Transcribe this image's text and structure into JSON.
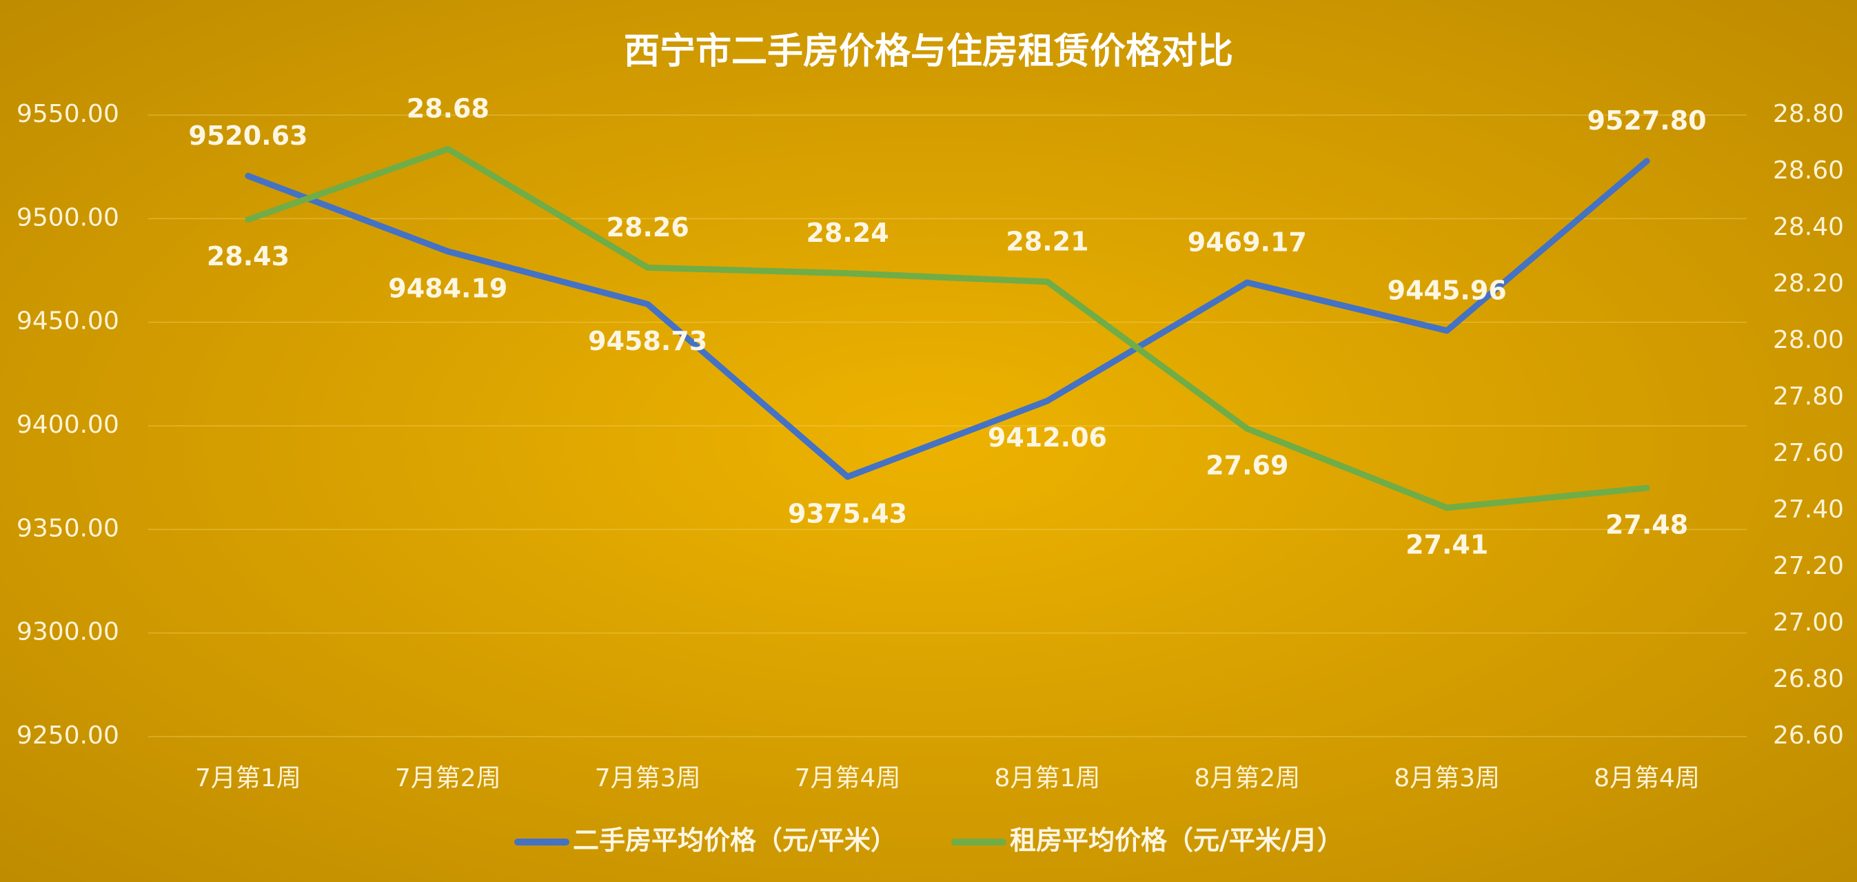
{
  "chart_data": {
    "type": "line",
    "title": "西宁市二手房价格与住房租赁价格对比",
    "categories": [
      "7月第1周",
      "7月第2周",
      "7月第3周",
      "7月第4周",
      "8月第1周",
      "8月第2周",
      "8月第3周",
      "8月第4周"
    ],
    "series": [
      {
        "name": "二手房平均价格（元/平米）",
        "color": "#4472c4",
        "values": [
          9520.63,
          9484.19,
          9458.73,
          9375.43,
          9412.06,
          9469.17,
          9445.96,
          9527.8
        ],
        "value_labels": [
          "9520.63",
          "9484.19",
          "9458.73",
          "9375.43",
          "9412.06",
          "9469.17",
          "9445.96",
          "9527.80"
        ]
      },
      {
        "name": "租房平均价格（元/平米/月）",
        "color": "#70ad47",
        "axis": "y2",
        "values": [
          28.43,
          28.68,
          28.26,
          28.24,
          28.21,
          27.69,
          27.41,
          27.48
        ]
      }
    ],
    "ylim": [
      9250,
      9550
    ],
    "yticks": [
      {
        "value": 9250,
        "label": "9250.00"
      },
      {
        "value": 9300,
        "label": "9300.00"
      },
      {
        "value": 9350,
        "label": "9350.00"
      },
      {
        "value": 9400,
        "label": "9400.00"
      },
      {
        "value": 9450,
        "label": "9450.00"
      },
      {
        "value": 9500,
        "label": "9500.00"
      },
      {
        "value": 9550,
        "label": "9550.00"
      }
    ],
    "y2lim": [
      26.6,
      28.8
    ],
    "y2ticks": [
      {
        "value": 26.6,
        "label": "26.60"
      },
      {
        "value": 26.8,
        "label": "26.80"
      },
      {
        "value": 27,
        "label": "27.00"
      },
      {
        "value": 27.2,
        "label": "27.20"
      },
      {
        "value": 27.4,
        "label": "27.40"
      },
      {
        "value": 27.6,
        "label": "27.60"
      },
      {
        "value": 27.8,
        "label": "27.80"
      },
      {
        "value": 28,
        "label": "28.00"
      },
      {
        "value": 28.2,
        "label": "28.20"
      },
      {
        "value": 28.4,
        "label": "28.40"
      },
      {
        "value": 28.6,
        "label": "28.60"
      },
      {
        "value": 28.8,
        "label": "28.80"
      }
    ],
    "grid": true,
    "legend": "bottom"
  }
}
